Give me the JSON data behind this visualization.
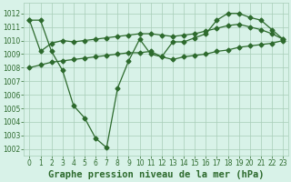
{
  "title": "Graphe pression niveau de la mer (hPa)",
  "line1_x": [
    0,
    1,
    2,
    3,
    4,
    5,
    6,
    7,
    8,
    9,
    10,
    11,
    12,
    13,
    14,
    15,
    16,
    17,
    18,
    19,
    20,
    21,
    22,
    23
  ],
  "line1_y": [
    1011.5,
    1011.5,
    1009.2,
    1007.8,
    1005.2,
    1004.3,
    1002.8,
    1002.1,
    1006.5,
    1008.5,
    1010.1,
    1009.0,
    1008.8,
    1009.9,
    1009.9,
    1010.2,
    1010.5,
    1011.5,
    1012.0,
    1012.0,
    1011.7,
    1011.5,
    1010.8,
    1010.1
  ],
  "line2_x": [
    0,
    1,
    2,
    3,
    4,
    5,
    6,
    7,
    8,
    9,
    10,
    11,
    12,
    13,
    14,
    15,
    16,
    17,
    18,
    19,
    20,
    21,
    22,
    23
  ],
  "line2_y": [
    1011.5,
    1009.2,
    1009.8,
    1010.0,
    1009.9,
    1010.0,
    1010.1,
    1010.2,
    1010.3,
    1010.4,
    1010.5,
    1010.5,
    1010.4,
    1010.3,
    1010.4,
    1010.5,
    1010.7,
    1010.9,
    1011.1,
    1011.2,
    1011.0,
    1010.8,
    1010.5,
    1010.1
  ],
  "line3_x": [
    0,
    1,
    2,
    3,
    4,
    5,
    6,
    7,
    8,
    9,
    10,
    11,
    12,
    13,
    14,
    15,
    16,
    17,
    18,
    19,
    20,
    21,
    22,
    23
  ],
  "line3_y": [
    1008.0,
    1008.2,
    1008.4,
    1008.5,
    1008.6,
    1008.7,
    1008.8,
    1008.9,
    1009.0,
    1009.1,
    1009.1,
    1009.2,
    1008.8,
    1008.6,
    1008.8,
    1008.9,
    1009.0,
    1009.2,
    1009.3,
    1009.5,
    1009.6,
    1009.7,
    1009.8,
    1010.0
  ],
  "ylim": [
    1001.5,
    1012.8
  ],
  "yticks": [
    1002,
    1003,
    1004,
    1005,
    1006,
    1007,
    1008,
    1009,
    1010,
    1011,
    1012
  ],
  "xlim": [
    -0.5,
    23.5
  ],
  "xticks": [
    0,
    1,
    2,
    3,
    4,
    5,
    6,
    7,
    8,
    9,
    10,
    11,
    12,
    13,
    14,
    15,
    16,
    17,
    18,
    19,
    20,
    21,
    22,
    23
  ],
  "line_color": "#2d6a2d",
  "bg_color": "#d8f2e8",
  "grid_color": "#a8cdb8",
  "marker": "D",
  "marker_size": 2.5,
  "title_fontsize": 7.5,
  "tick_labelsize": 5.5
}
